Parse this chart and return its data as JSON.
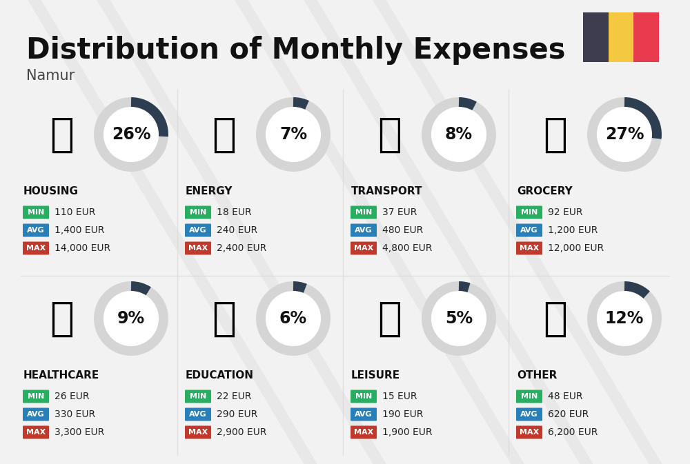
{
  "title": "Distribution of Monthly Expenses",
  "subtitle": "Namur",
  "background_color": "#f2f2f2",
  "categories": [
    {
      "name": "HOUSING",
      "pct": 26,
      "min": "110 EUR",
      "avg": "1,400 EUR",
      "max": "14,000 EUR",
      "row": 0,
      "col": 0
    },
    {
      "name": "ENERGY",
      "pct": 7,
      "min": "18 EUR",
      "avg": "240 EUR",
      "max": "2,400 EUR",
      "row": 0,
      "col": 1
    },
    {
      "name": "TRANSPORT",
      "pct": 8,
      "min": "37 EUR",
      "avg": "480 EUR",
      "max": "4,800 EUR",
      "row": 0,
      "col": 2
    },
    {
      "name": "GROCERY",
      "pct": 27,
      "min": "92 EUR",
      "avg": "1,200 EUR",
      "max": "12,000 EUR",
      "row": 0,
      "col": 3
    },
    {
      "name": "HEALTHCARE",
      "pct": 9,
      "min": "26 EUR",
      "avg": "330 EUR",
      "max": "3,300 EUR",
      "row": 1,
      "col": 0
    },
    {
      "name": "EDUCATION",
      "pct": 6,
      "min": "22 EUR",
      "avg": "290 EUR",
      "max": "2,900 EUR",
      "row": 1,
      "col": 1
    },
    {
      "name": "LEISURE",
      "pct": 5,
      "min": "15 EUR",
      "avg": "190 EUR",
      "max": "1,900 EUR",
      "row": 1,
      "col": 2
    },
    {
      "name": "OTHER",
      "pct": 12,
      "min": "48 EUR",
      "avg": "620 EUR",
      "max": "6,200 EUR",
      "row": 1,
      "col": 3
    }
  ],
  "min_color": "#27ae60",
  "avg_color": "#2980b9",
  "max_color": "#c0392b",
  "arc_dark": "#2c3e50",
  "arc_light": "#d5d5d5",
  "flag_colors": [
    "#3d3d4f",
    "#f5c842",
    "#e83c4e"
  ],
  "title_fontsize": 30,
  "subtitle_fontsize": 15,
  "cat_fontsize": 11,
  "pct_fontsize": 17,
  "badge_fontsize": 8,
  "val_fontsize": 10
}
